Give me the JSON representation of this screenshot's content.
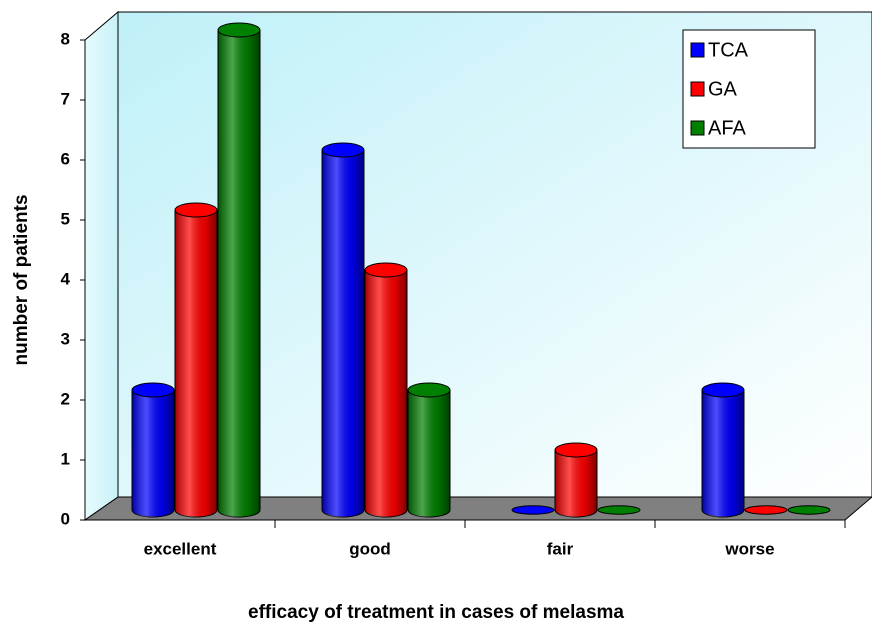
{
  "chart_data": {
    "type": "bar3d",
    "x_label": "efficacy of treatment in cases of melasma",
    "y_label": "number of patients",
    "categories": [
      "excellent",
      "good",
      "fair",
      "worse"
    ],
    "series": [
      {
        "name": "TCA",
        "color": "#0000ff",
        "values": [
          2,
          6,
          0,
          2
        ]
      },
      {
        "name": "GA",
        "color": "#ff0000",
        "values": [
          5,
          4,
          1,
          0
        ]
      },
      {
        "name": "AFA",
        "color": "#008000",
        "values": [
          8,
          2,
          0,
          0
        ]
      }
    ],
    "ylim": [
      0,
      8
    ],
    "yticks": [
      0,
      1,
      2,
      3,
      4,
      5,
      6,
      7,
      8
    ],
    "legend": "upper right"
  }
}
